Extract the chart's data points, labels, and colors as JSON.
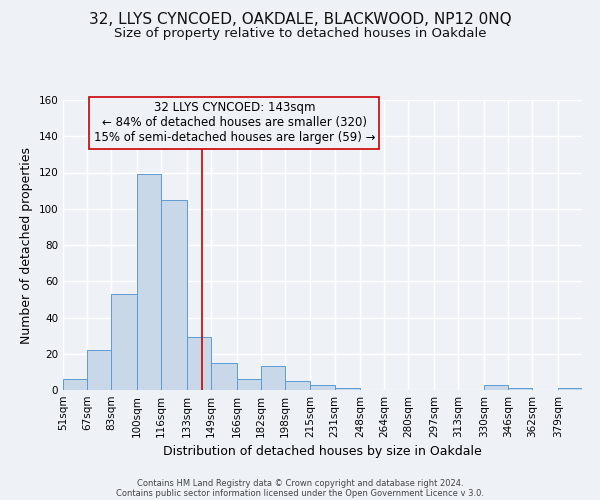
{
  "title1": "32, LLYS CYNCOED, OAKDALE, BLACKWOOD, NP12 0NQ",
  "title2": "Size of property relative to detached houses in Oakdale",
  "xlabel": "Distribution of detached houses by size in Oakdale",
  "ylabel": "Number of detached properties",
  "footer1": "Contains HM Land Registry data © Crown copyright and database right 2024.",
  "footer2": "Contains public sector information licensed under the Open Government Licence v 3.0.",
  "bin_labels": [
    "51sqm",
    "67sqm",
    "83sqm",
    "100sqm",
    "116sqm",
    "133sqm",
    "149sqm",
    "166sqm",
    "182sqm",
    "198sqm",
    "215sqm",
    "231sqm",
    "248sqm",
    "264sqm",
    "280sqm",
    "297sqm",
    "313sqm",
    "330sqm",
    "346sqm",
    "362sqm",
    "379sqm"
  ],
  "bar_heights": [
    6,
    22,
    53,
    119,
    105,
    29,
    15,
    6,
    13,
    5,
    3,
    1,
    0,
    0,
    0,
    0,
    0,
    3,
    1,
    0,
    1
  ],
  "bin_edges_values": [
    51,
    67,
    83,
    100,
    116,
    133,
    149,
    166,
    182,
    198,
    215,
    231,
    248,
    264,
    280,
    297,
    313,
    330,
    346,
    362,
    379,
    395
  ],
  "bar_color": "#c8d8e8",
  "bar_edge_color": "#5b9bd5",
  "vline_x": 143,
  "vline_color": "#cc0000",
  "annotation_title": "32 LLYS CYNCOED: 143sqm",
  "annotation_line1": "← 84% of detached houses are smaller (320)",
  "annotation_line2": "15% of semi-detached houses are larger (59) →",
  "annotation_box_edge": "#cc0000",
  "ylim": [
    0,
    160
  ],
  "yticks": [
    0,
    20,
    40,
    60,
    80,
    100,
    120,
    140,
    160
  ],
  "bg_color": "#eef2f7",
  "grid_color": "#ffffff",
  "title_fontsize": 11,
  "subtitle_fontsize": 9.5,
  "axis_label_fontsize": 9,
  "tick_label_fontsize": 7.5,
  "annotation_fontsize": 8.5,
  "footer_fontsize": 6.0
}
